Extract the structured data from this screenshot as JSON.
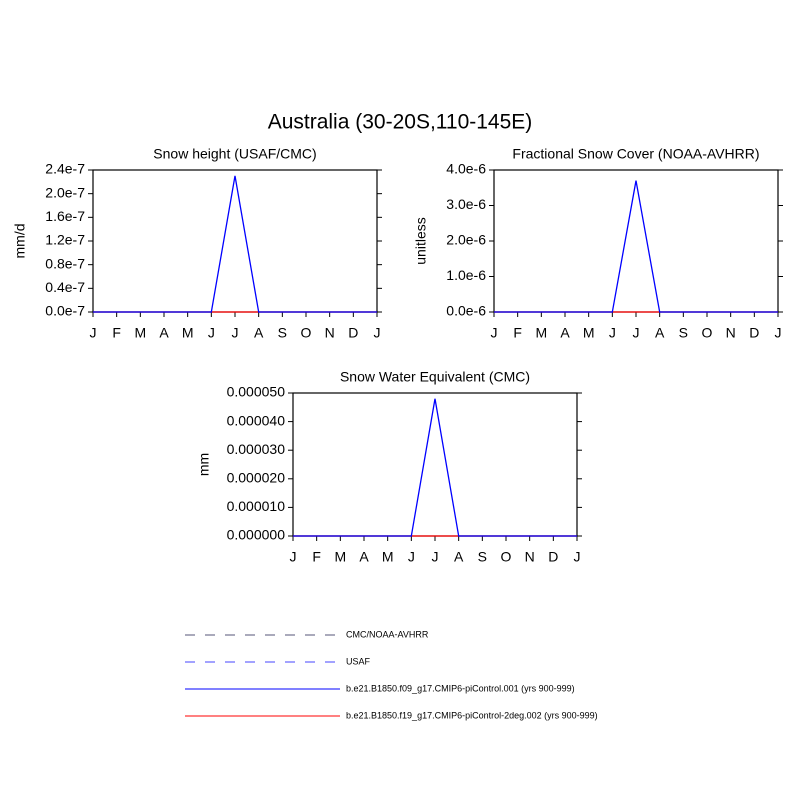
{
  "title": "Australia (30-20S,110-145E)",
  "chart_data": [
    {
      "type": "line",
      "title": "Snow height (USAF/CMC)",
      "ylabel": "mm/d",
      "categories": [
        "J",
        "F",
        "M",
        "A",
        "M",
        "J",
        "J",
        "A",
        "S",
        "O",
        "N",
        "D",
        "J"
      ],
      "ylim": [
        0,
        2.4e-07
      ],
      "yticks": [
        {
          "value": 0,
          "label": "0.0e-7"
        },
        {
          "value": 4e-08,
          "label": "0.4e-7"
        },
        {
          "value": 8e-08,
          "label": "0.8e-7"
        },
        {
          "value": 1.2e-07,
          "label": "1.2e-7"
        },
        {
          "value": 1.6e-07,
          "label": "1.6e-7"
        },
        {
          "value": 2e-07,
          "label": "2.0e-7"
        },
        {
          "value": 2.4e-07,
          "label": "2.4e-7"
        }
      ],
      "series": [
        {
          "color": "#0000ff",
          "values": [
            0,
            0,
            0,
            0,
            0,
            0,
            2.3e-07,
            0,
            0,
            0,
            0,
            0,
            0
          ]
        },
        {
          "color": "#ff0000",
          "values": [
            0,
            0,
            0,
            0,
            0,
            0,
            0,
            0,
            0,
            0,
            0,
            0,
            0
          ]
        }
      ]
    },
    {
      "type": "line",
      "title": "Fractional Snow Cover (NOAA-AVHRR)",
      "ylabel": "unitless",
      "categories": [
        "J",
        "F",
        "M",
        "A",
        "M",
        "J",
        "J",
        "A",
        "S",
        "O",
        "N",
        "D",
        "J"
      ],
      "ylim": [
        0,
        4e-06
      ],
      "yticks": [
        {
          "value": 0,
          "label": "0.0e-6"
        },
        {
          "value": 1e-06,
          "label": "1.0e-6"
        },
        {
          "value": 2e-06,
          "label": "2.0e-6"
        },
        {
          "value": 3e-06,
          "label": "3.0e-6"
        },
        {
          "value": 4e-06,
          "label": "4.0e-6"
        }
      ],
      "series": [
        {
          "color": "#0000ff",
          "values": [
            0,
            0,
            0,
            0,
            0,
            0,
            3.7e-06,
            0,
            0,
            0,
            0,
            0,
            0
          ]
        },
        {
          "color": "#ff0000",
          "values": [
            0,
            0,
            0,
            0,
            0,
            0,
            0,
            0,
            0,
            0,
            0,
            0,
            0
          ]
        }
      ]
    },
    {
      "type": "line",
      "title": "Snow Water Equivalent (CMC)",
      "ylabel": "mm",
      "categories": [
        "J",
        "F",
        "M",
        "A",
        "M",
        "J",
        "J",
        "A",
        "S",
        "O",
        "N",
        "D",
        "J"
      ],
      "ylim": [
        0,
        5e-05
      ],
      "yticks": [
        {
          "value": 0,
          "label": "0.000000"
        },
        {
          "value": 1e-05,
          "label": "0.000010"
        },
        {
          "value": 2e-05,
          "label": "0.000020"
        },
        {
          "value": 3e-05,
          "label": "0.000030"
        },
        {
          "value": 4e-05,
          "label": "0.000040"
        },
        {
          "value": 5e-05,
          "label": "0.000050"
        }
      ],
      "series": [
        {
          "color": "#0000ff",
          "values": [
            0,
            0,
            0,
            0,
            0,
            0,
            4.8e-05,
            0,
            0,
            0,
            0,
            0,
            0
          ]
        },
        {
          "color": "#ff0000",
          "values": [
            0,
            0,
            0,
            0,
            0,
            0,
            0,
            0,
            0,
            0,
            0,
            0,
            0
          ]
        }
      ]
    }
  ],
  "legend": [
    {
      "name": "CMC/NOAA-AVHRR",
      "color": "#555577",
      "dash": true
    },
    {
      "name": "USAF",
      "color": "#4444ff",
      "dash": true
    },
    {
      "name": "b.e21.B1850.f09_g17.CMIP6-piControl.001 (yrs 900-999)",
      "color": "#0000ff",
      "dash": false
    },
    {
      "name": "b.e21.B1850.f19_g17.CMIP6-piControl-2deg.002 (yrs 900-999)",
      "color": "#ff0000",
      "dash": false
    }
  ]
}
